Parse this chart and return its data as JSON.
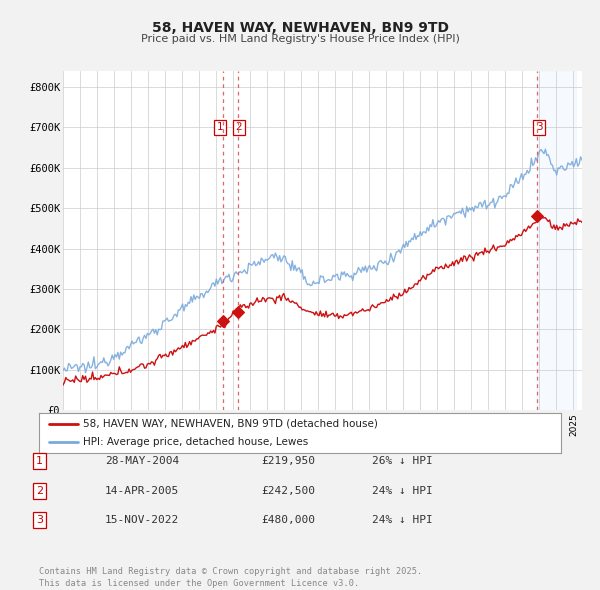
{
  "title": "58, HAVEN WAY, NEWHAVEN, BN9 9TD",
  "subtitle": "Price paid vs. HM Land Registry's House Price Index (HPI)",
  "background_color": "#f2f2f2",
  "plot_background": "#ffffff",
  "legend_label_red": "58, HAVEN WAY, NEWHAVEN, BN9 9TD (detached house)",
  "legend_label_blue": "HPI: Average price, detached house, Lewes",
  "footer": "Contains HM Land Registry data © Crown copyright and database right 2025.\nThis data is licensed under the Open Government Licence v3.0.",
  "transactions": [
    {
      "num": 1,
      "date": "28-MAY-2004",
      "price": "£219,950",
      "pct": "26% ↓ HPI",
      "year": 2004.41
    },
    {
      "num": 2,
      "date": "14-APR-2005",
      "price": "£242,500",
      "pct": "24% ↓ HPI",
      "year": 2005.28
    },
    {
      "num": 3,
      "date": "15-NOV-2022",
      "price": "£480,000",
      "pct": "24% ↓ HPI",
      "year": 2022.87
    }
  ],
  "vline_color": "#dd6666",
  "shade_color": "#ddeeff",
  "red_line_color": "#cc1111",
  "blue_line_color": "#7aaadd",
  "ylim": [
    0,
    840000
  ],
  "yticks": [
    0,
    100000,
    200000,
    300000,
    400000,
    500000,
    600000,
    700000,
    800000
  ],
  "ytick_labels": [
    "£0",
    "£100K",
    "£200K",
    "£300K",
    "£400K",
    "£500K",
    "£600K",
    "£700K",
    "£800K"
  ],
  "xmin": 1995,
  "xmax": 2025.5,
  "transaction_prices": [
    219950,
    242500,
    480000
  ],
  "transaction_years": [
    2004.41,
    2005.28,
    2022.87
  ]
}
